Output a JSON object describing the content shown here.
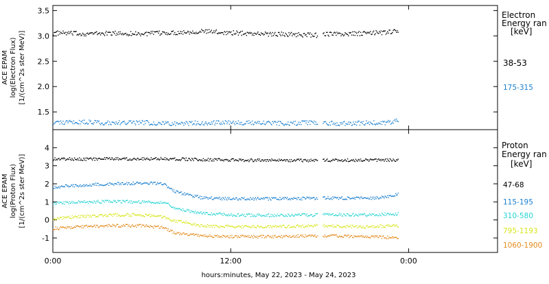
{
  "xlabel": "hours:minutes, May 22, 2023 - May 24, 2023",
  "x_ticks": [
    {
      "hours": 0,
      "label": "0:00"
    },
    {
      "hours": 12,
      "label": "12:00"
    },
    {
      "hours": 24,
      "label": "0:00"
    }
  ],
  "x_range_hours": [
    0,
    30
  ],
  "chart_data": [
    {
      "type": "scatter",
      "name": "electron-panel",
      "ylabel": [
        "ACE EPAM",
        "log(Electron Flux)",
        "[1/(cm^2s ster MeV)]"
      ],
      "ylim": [
        1.15,
        3.6
      ],
      "y_ticks": [
        1.5,
        2.0,
        2.5,
        3.0,
        3.5
      ],
      "y_tick_labels": [
        "1.5",
        "2.0",
        "2.5",
        "3.0",
        "3.5"
      ],
      "legend_title": [
        "Electron",
        "Energy ran",
        "[keV]"
      ],
      "data_gaps_hours": [
        [
          18.1,
          18.3
        ],
        [
          18.3,
          18.2
        ]
      ],
      "series": [
        {
          "name": "38-53",
          "color": "#000000",
          "x": [
            0,
            2,
            4,
            6,
            8,
            10,
            12,
            14,
            16,
            17.8,
            18.2,
            19.5,
            21,
            22.5,
            23.3
          ],
          "y": [
            3.07,
            3.05,
            3.06,
            3.05,
            3.07,
            3.1,
            3.07,
            3.05,
            3.04,
            3.02,
            3.05,
            3.04,
            3.06,
            3.08,
            3.1
          ]
        },
        {
          "name": "175-315",
          "color": "#1a7fcf",
          "x": [
            0,
            2,
            4,
            6,
            8,
            10,
            12,
            14,
            16,
            17.8,
            18.2,
            19.5,
            21,
            22.5,
            23.3
          ],
          "y": [
            1.3,
            1.31,
            1.29,
            1.3,
            1.28,
            1.29,
            1.3,
            1.29,
            1.28,
            1.3,
            1.29,
            1.28,
            1.29,
            1.3,
            1.33
          ]
        }
      ]
    },
    {
      "type": "scatter",
      "name": "proton-panel",
      "ylabel": [
        "ACE EPAM",
        "log(Proton Flux)",
        "[1/(cm^2s ster MeV)]"
      ],
      "ylim": [
        -1.8,
        5.0
      ],
      "y_ticks": [
        -1,
        0,
        1,
        2,
        3,
        4
      ],
      "y_tick_labels": [
        "-1",
        "0",
        "1",
        "2",
        "3",
        "4"
      ],
      "legend_title": [
        "Proton",
        "Energy ran",
        "[keV]"
      ],
      "series": [
        {
          "name": "47-68",
          "color": "#000000",
          "x": [
            0,
            3,
            6,
            7.5,
            9,
            12,
            15,
            17.8,
            18.2,
            21,
            23.3
          ],
          "y": [
            3.4,
            3.4,
            3.42,
            3.42,
            3.38,
            3.34,
            3.33,
            3.32,
            3.33,
            3.32,
            3.34
          ]
        },
        {
          "name": "115-195",
          "color": "#1a7fcf",
          "x": [
            0,
            1,
            3,
            5,
            7,
            7.5,
            8.2,
            9,
            10,
            12,
            15,
            17.8,
            18.2,
            21,
            22.5,
            23.3
          ],
          "y": [
            1.85,
            1.9,
            2.0,
            2.05,
            2.05,
            2.0,
            1.6,
            1.45,
            1.25,
            1.2,
            1.2,
            1.22,
            1.25,
            1.22,
            1.3,
            1.45
          ]
        },
        {
          "name": "310-580",
          "color": "#27d3d3",
          "x": [
            0,
            2,
            4,
            6,
            7.5,
            8.2,
            9,
            10,
            12,
            15,
            17.8,
            18.2,
            21,
            23.3
          ],
          "y": [
            0.95,
            1.02,
            1.05,
            1.02,
            1.0,
            0.7,
            0.55,
            0.4,
            0.3,
            0.28,
            0.3,
            0.32,
            0.3,
            0.35
          ]
        },
        {
          "name": "795-1193",
          "color": "#d6e61a",
          "x": [
            0,
            2,
            4,
            6,
            7.5,
            8.2,
            9,
            10,
            12,
            15,
            17.8,
            18.2,
            21,
            23.3
          ],
          "y": [
            0.1,
            0.22,
            0.3,
            0.3,
            0.2,
            -0.05,
            -0.1,
            -0.3,
            -0.35,
            -0.35,
            -0.3,
            -0.3,
            -0.35,
            -0.3
          ]
        },
        {
          "name": "1060-1900",
          "color": "#e38a1b",
          "x": [
            0,
            2,
            4,
            6,
            7.5,
            8.2,
            9,
            10,
            12,
            15,
            17.8,
            18.2,
            21,
            23.3
          ],
          "y": [
            -0.45,
            -0.35,
            -0.3,
            -0.3,
            -0.4,
            -0.7,
            -0.75,
            -0.85,
            -0.9,
            -0.9,
            -0.85,
            -0.85,
            -0.9,
            -0.95
          ]
        }
      ]
    }
  ]
}
